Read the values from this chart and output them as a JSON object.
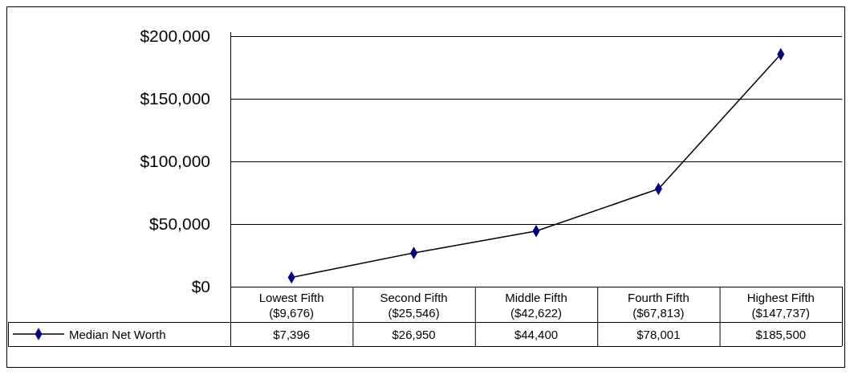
{
  "chart_data": {
    "type": "line",
    "categories": [
      "Lowest Fifth\n($9,676)",
      "Second Fifth\n($25,546)",
      "Middle Fifth\n($42,622)",
      "Fourth Fifth\n($67,813)",
      "Highest Fifth\n($147,737)"
    ],
    "series": [
      {
        "name": "Median Net Worth",
        "color": "#000080",
        "values": [
          7396,
          26950,
          44400,
          78001,
          185500
        ],
        "value_labels": [
          "$7,396",
          "$26,950",
          "$44,400",
          "$78,001",
          "$185,500"
        ]
      }
    ],
    "ylim": [
      0,
      200000
    ],
    "yticks": [
      {
        "value": 0,
        "label": "$0"
      },
      {
        "value": 50000,
        "label": "$50,000"
      },
      {
        "value": 100000,
        "label": "$100,000"
      },
      {
        "value": 150000,
        "label": "$150,000"
      },
      {
        "value": 200000,
        "label": "$200,000"
      }
    ],
    "grid": "y",
    "marker": "diamond",
    "line_style": "solid",
    "legend": "bottom left"
  }
}
